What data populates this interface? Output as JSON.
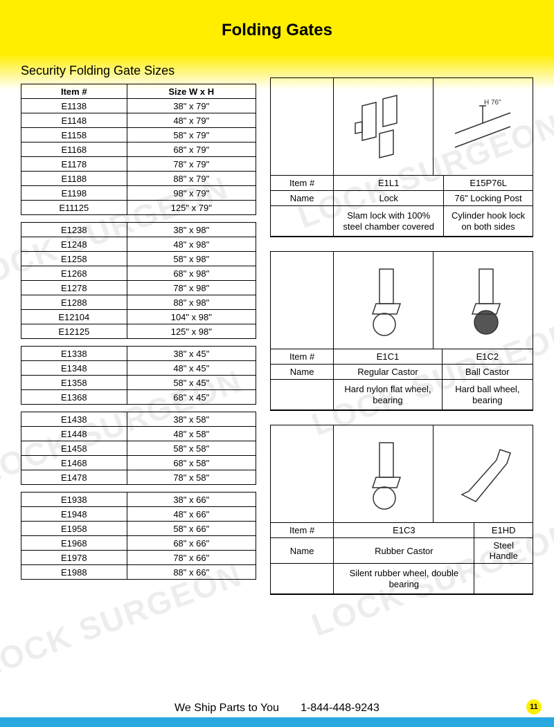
{
  "page": {
    "title": "Folding Gates",
    "subtitle": "Security Folding Gate Sizes",
    "page_number": "11",
    "footer_ship": "We Ship Parts to You",
    "footer_phone": "1-844-448-9243",
    "watermark": "LOCK SURGEON"
  },
  "colors": {
    "yellow": "#ffee00",
    "blue": "#29a8df",
    "border": "#000000",
    "text": "#000000",
    "watermark": "rgba(0,0,0,0.07)"
  },
  "size_table_headers": {
    "col1": "Item #",
    "col2": "Size W x H"
  },
  "size_groups": [
    [
      {
        "item": "E1138",
        "size": "38\" x 79\""
      },
      {
        "item": "E1148",
        "size": "48\" x 79\""
      },
      {
        "item": "E1158",
        "size": "58\" x 79\""
      },
      {
        "item": "E1168",
        "size": "68\" x 79\""
      },
      {
        "item": "E1178",
        "size": "78\" x 79\""
      },
      {
        "item": "E1188",
        "size": "88\" x 79\""
      },
      {
        "item": "E1198",
        "size": "98\" x 79\""
      },
      {
        "item": "E11125",
        "size": "125\" x 79\""
      }
    ],
    [
      {
        "item": "E1238",
        "size": "38\" x 98\""
      },
      {
        "item": "E1248",
        "size": "48\" x 98\""
      },
      {
        "item": "E1258",
        "size": "58\" x 98\""
      },
      {
        "item": "E1268",
        "size": "68\" x 98\""
      },
      {
        "item": "E1278",
        "size": "78\" x 98\""
      },
      {
        "item": "E1288",
        "size": "88\" x 98\""
      },
      {
        "item": "E12104",
        "size": "104\" x 98\""
      },
      {
        "item": "E12125",
        "size": "125\" x 98\""
      }
    ],
    [
      {
        "item": "E1338",
        "size": "38\" x 45\""
      },
      {
        "item": "E1348",
        "size": "48\" x 45\""
      },
      {
        "item": "E1358",
        "size": "58\" x 45\""
      },
      {
        "item": "E1368",
        "size": "68\" x 45\""
      }
    ],
    [
      {
        "item": "E1438",
        "size": "38\" x 58\""
      },
      {
        "item": "E1448",
        "size": "48\" x 58\""
      },
      {
        "item": "E1458",
        "size": "58\" x 58\""
      },
      {
        "item": "E1468",
        "size": "68\" x 58\""
      },
      {
        "item": "E1478",
        "size": "78\" x 58\""
      }
    ],
    [
      {
        "item": "E1938",
        "size": "38\" x 66\""
      },
      {
        "item": "E1948",
        "size": "48\" x 66\""
      },
      {
        "item": "E1958",
        "size": "58\" x 66\""
      },
      {
        "item": "E1968",
        "size": "68\" x 66\""
      },
      {
        "item": "E1978",
        "size": "78\" x 66\""
      },
      {
        "item": "E1988",
        "size": "88\" x 66\""
      }
    ]
  ],
  "product_blocks": [
    {
      "row_labels": {
        "item": "Item #",
        "name": "Name"
      },
      "cols": [
        {
          "item": "E1L1",
          "name": "Lock",
          "desc": "Slam lock with 100% steel chamber covered"
        },
        {
          "item": "E15P76L",
          "name": "76\" Locking Post",
          "desc": "Cylinder hook lock on both sides"
        }
      ]
    },
    {
      "row_labels": {
        "item": "Item #",
        "name": "Name"
      },
      "cols": [
        {
          "item": "E1C1",
          "name": "Regular Castor",
          "desc": "Hard nylon flat wheel, bearing"
        },
        {
          "item": "E1C2",
          "name": "Ball Castor",
          "desc": "Hard ball wheel, bearing"
        }
      ]
    },
    {
      "row_labels": {
        "item": "Item #",
        "name": "Name"
      },
      "cols": [
        {
          "item": "E1C3",
          "name": "Rubber Castor",
          "desc": "Silent rubber wheel, double bearing"
        },
        {
          "item": "E1HD",
          "name": "Steel Handle",
          "desc": ""
        }
      ]
    }
  ]
}
